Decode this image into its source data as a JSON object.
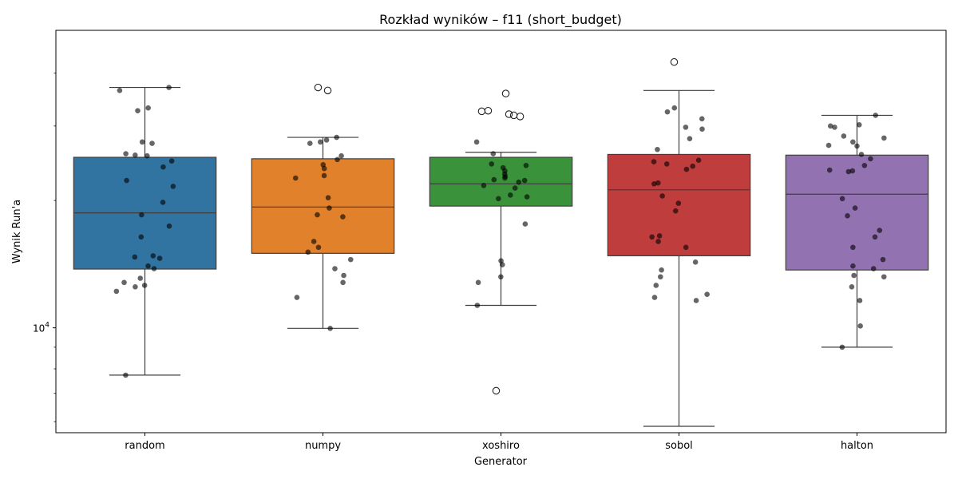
{
  "chart_data": {
    "type": "box",
    "title": "Rozkład wyników – f11 (short_budget)",
    "xlabel": "Generator",
    "ylabel": "Wynik Run'a",
    "yscale": "log",
    "ylim": [
      5650,
      50500
    ],
    "yticks": [
      {
        "value": 10000,
        "base": "10",
        "exp": "4"
      }
    ],
    "minor_yticks": [
      6000,
      7000,
      8000,
      9000,
      20000,
      30000,
      40000
    ],
    "categories": [
      "random",
      "numpy",
      "xoshiro",
      "sobol",
      "halton"
    ],
    "colors": [
      "#3274a1",
      "#e1812c",
      "#3a923a",
      "#c03d3e",
      "#9372b2"
    ],
    "boxes": [
      {
        "name": "random",
        "q1": 13770,
        "median": 18700,
        "q3": 25300,
        "whisker_low": 7730,
        "whisker_high": 37000,
        "outliers": []
      },
      {
        "name": "numpy",
        "q1": 15000,
        "median": 19300,
        "q3": 25100,
        "whisker_low": 9970,
        "whisker_high": 28200,
        "outliers": [
          37000,
          36400
        ]
      },
      {
        "name": "xoshiro",
        "q1": 19400,
        "median": 21900,
        "q3": 25300,
        "whisker_low": 11300,
        "whisker_high": 26000,
        "outliers": [
          7100,
          35800,
          32600,
          31800,
          32500,
          31600,
          32000
        ]
      },
      {
        "name": "sobol",
        "q1": 14800,
        "median": 21200,
        "q3": 25700,
        "whisker_low": 5850,
        "whisker_high": 36400,
        "outliers": [
          42500
        ]
      },
      {
        "name": "halton",
        "q1": 13700,
        "median": 20700,
        "q3": 25600,
        "whisker_low": 9000,
        "whisker_high": 31800,
        "outliers": []
      }
    ],
    "points": [
      [
        37000,
        36400,
        33100,
        32600,
        27500,
        27300,
        25800,
        25600,
        25500,
        24800,
        24000,
        22300,
        21600,
        19800,
        18500,
        17400,
        16400,
        14800,
        14700,
        14600,
        14000,
        13800,
        13100,
        12800,
        12500,
        12600,
        12200,
        7730
      ],
      [
        28200,
        27800,
        27500,
        27300,
        25500,
        25000,
        24300,
        23800,
        22900,
        22600,
        20300,
        19200,
        18500,
        18300,
        16000,
        15500,
        15100,
        14500,
        13800,
        13300,
        12800,
        11800,
        9970
      ],
      [
        27500,
        25800,
        24400,
        24200,
        23900,
        23500,
        23100,
        22800,
        22600,
        22400,
        22300,
        22100,
        21700,
        21400,
        20600,
        20400,
        20200,
        17600,
        14400,
        14100,
        13200,
        12800,
        11300
      ],
      [
        33100,
        32400,
        31200,
        29800,
        29500,
        28000,
        26400,
        24900,
        24700,
        24400,
        24100,
        23700,
        22000,
        21900,
        20500,
        19700,
        18900,
        16500,
        16400,
        16000,
        15500,
        14300,
        13700,
        13200,
        12600,
        12000,
        11800,
        11600
      ],
      [
        31800,
        30200,
        30000,
        29800,
        28400,
        28100,
        27500,
        27000,
        26900,
        25700,
        25100,
        24200,
        23600,
        23500,
        23400,
        20200,
        19200,
        18400,
        17000,
        16400,
        15500,
        14500,
        14000,
        13800,
        13300,
        13200,
        12500,
        11600,
        10100,
        9000
      ]
    ]
  }
}
